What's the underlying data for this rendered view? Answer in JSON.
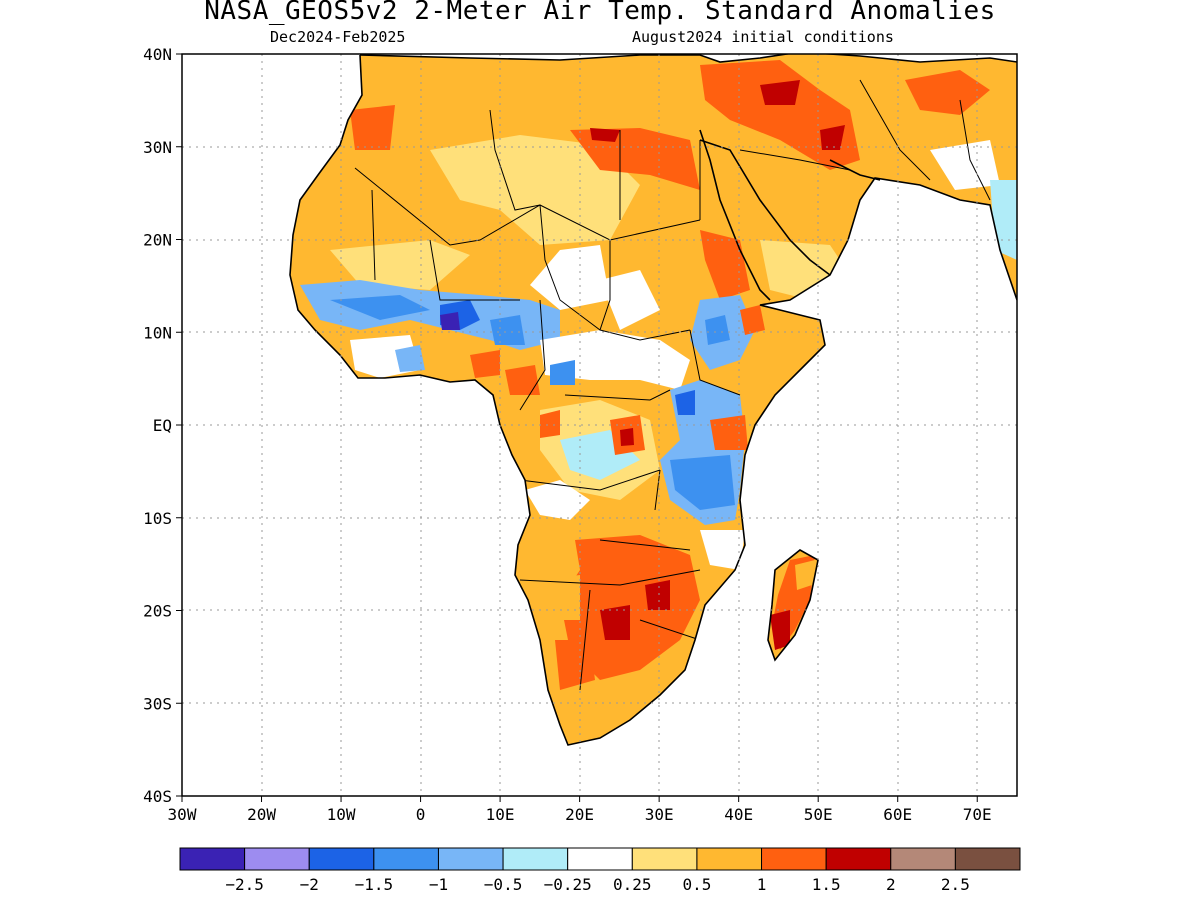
{
  "title": "NASA_GEOS5v2 2-Meter Air Temp. Standard Anomalies",
  "subtitle_left": "Dec2024-Feb2025",
  "subtitle_right": "August2024 initial conditions",
  "map": {
    "lon_range": [
      -30,
      75
    ],
    "lat_range": [
      -40,
      40
    ],
    "lat_ticks": [
      {
        "value": 40,
        "label": "40N"
      },
      {
        "value": 30,
        "label": "30N"
      },
      {
        "value": 20,
        "label": "20N"
      },
      {
        "value": 10,
        "label": "10N"
      },
      {
        "value": 0,
        "label": "EQ"
      },
      {
        "value": -10,
        "label": "10S"
      },
      {
        "value": -20,
        "label": "20S"
      },
      {
        "value": -30,
        "label": "30S"
      },
      {
        "value": -40,
        "label": "40S"
      }
    ],
    "lon_ticks": [
      {
        "value": -30,
        "label": "30W"
      },
      {
        "value": -20,
        "label": "20W"
      },
      {
        "value": -10,
        "label": "10W"
      },
      {
        "value": 0,
        "label": "0"
      },
      {
        "value": 10,
        "label": "10E"
      },
      {
        "value": 20,
        "label": "20E"
      },
      {
        "value": 30,
        "label": "30E"
      },
      {
        "value": 40,
        "label": "40E"
      },
      {
        "value": 50,
        "label": "50E"
      },
      {
        "value": 60,
        "label": "60E"
      },
      {
        "value": 70,
        "label": "70E"
      }
    ],
    "grid": "dotted"
  },
  "colorbar": {
    "colors": [
      "#3a22b4",
      "#9d8cf0",
      "#1c63e6",
      "#3d91f0",
      "#78b6f7",
      "#b0ecf8",
      "#ffffff",
      "#ffe07a",
      "#ffb830",
      "#ff6010",
      "#c00000",
      "#b48878",
      "#7a5040"
    ],
    "labels": [
      "-2.5",
      "-2",
      "-1.5",
      "-1",
      "-0.5",
      "-0.25",
      "0.25",
      "0.5",
      "1",
      "1.5",
      "2",
      "2.5"
    ]
  }
}
